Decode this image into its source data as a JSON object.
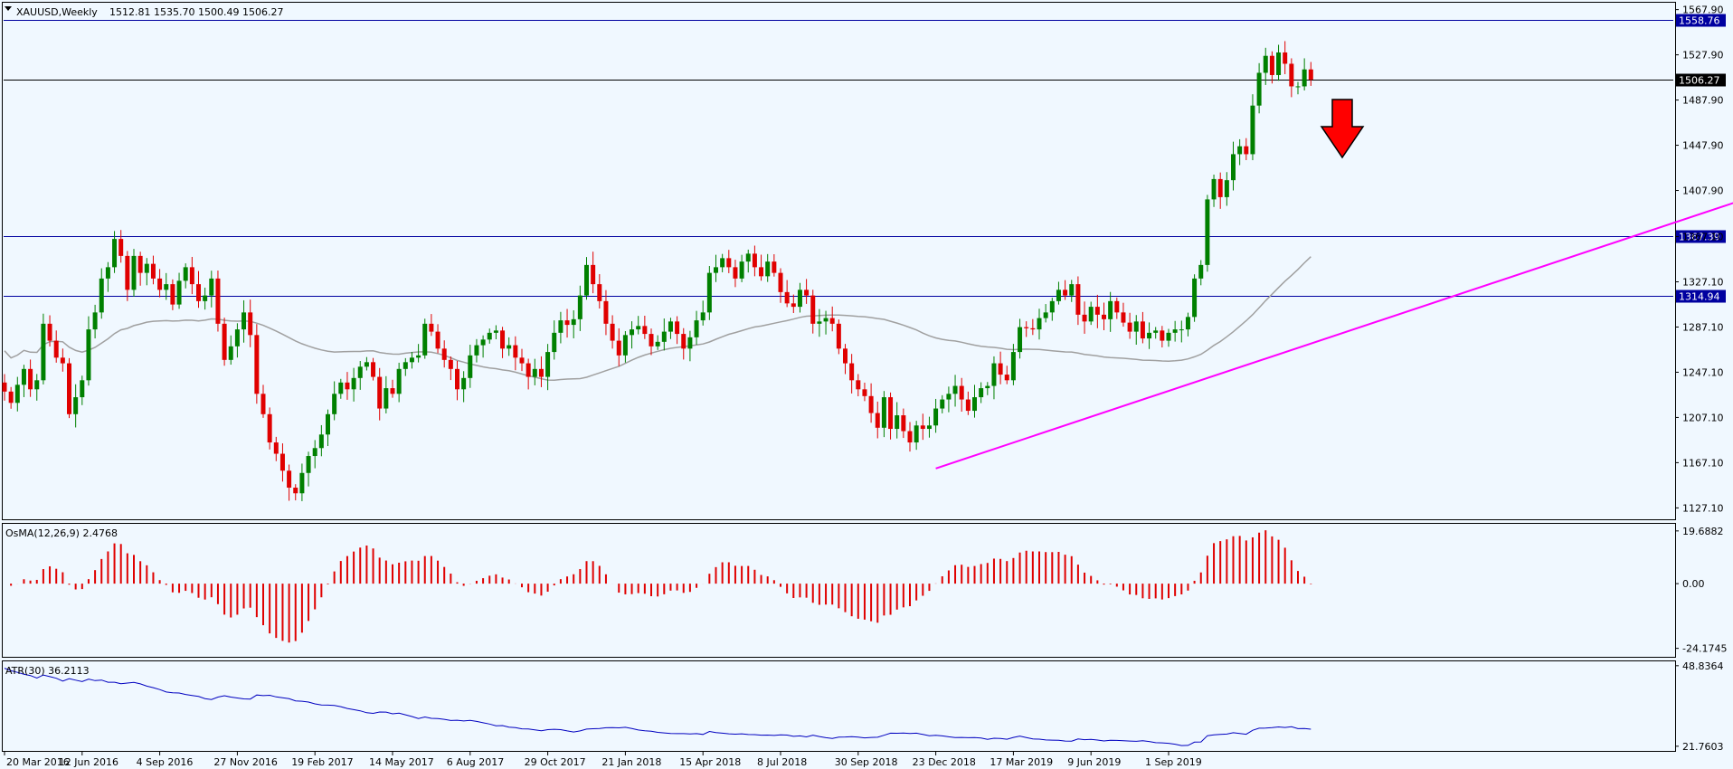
{
  "header": {
    "symbol": "XAUUSD,Weekly",
    "ohlc": "1512.81 1535.70 1500.49 1506.27",
    "menu_icon": "triangle-down-icon"
  },
  "osma_label": "OsMA(12,26,9) 2.4768",
  "atr_label": "ATR(30) 36.2113",
  "colors": {
    "background": "#f0f8ff",
    "bull_candle": "#008000",
    "bear_candle": "#e00000",
    "ma_line": "#a0a0a0",
    "trendline": "#ff00ff",
    "hline_blue": "#0000a0",
    "hline_black": "#000000",
    "osma_bar": "#e00000",
    "atr_line": "#0000c0",
    "arrow": "#ff0000"
  },
  "chart_data": [
    {
      "type": "candlestick",
      "symbol": "XAUUSD",
      "timeframe": "Weekly",
      "y_ticks": [
        "1567.90",
        "1527.90",
        "1487.90",
        "1447.90",
        "1407.90",
        "1367.10",
        "1327.10",
        "1287.10",
        "1247.10",
        "1207.10",
        "1167.10",
        "1127.10"
      ],
      "x_ticks": [
        "20 Mar 2016",
        "12 Jun 2016",
        "4 Sep 2016",
        "27 Nov 2016",
        "19 Feb 2017",
        "14 May 2017",
        "6 Aug 2017",
        "29 Oct 2017",
        "21 Jan 2018",
        "15 Apr 2018",
        "8 Jul 2018",
        "30 Sep 2018",
        "23 Dec 2018",
        "17 Mar 2019",
        "9 Jun 2019",
        "1 Sep 2019"
      ],
      "ylim": [
        1117,
        1574
      ],
      "price_levels": [
        {
          "value": 1558.76,
          "label": "1558.76",
          "style": "blue"
        },
        {
          "value": 1506.27,
          "label": "1506.27",
          "style": "current"
        },
        {
          "value": 1367.39,
          "label": "1367.39",
          "style": "blue"
        },
        {
          "value": 1314.94,
          "label": "1314.94",
          "style": "blue"
        }
      ],
      "closes": [
        1230,
        1220,
        1236,
        1250,
        1232,
        1240,
        1290,
        1275,
        1260,
        1255,
        1210,
        1225,
        1240,
        1285,
        1300,
        1330,
        1340,
        1365,
        1350,
        1320,
        1350,
        1335,
        1343,
        1330,
        1320,
        1325,
        1307,
        1328,
        1340,
        1325,
        1310,
        1315,
        1330,
        1290,
        1258,
        1270,
        1285,
        1300,
        1280,
        1228,
        1210,
        1185,
        1175,
        1160,
        1145,
        1140,
        1158,
        1173,
        1180,
        1192,
        1210,
        1228,
        1238,
        1232,
        1242,
        1252,
        1256,
        1243,
        1215,
        1233,
        1228,
        1250,
        1256,
        1260,
        1262,
        1290,
        1283,
        1268,
        1258,
        1250,
        1232,
        1242,
        1262,
        1271,
        1276,
        1282,
        1284,
        1268,
        1271,
        1260,
        1255,
        1243,
        1250,
        1243,
        1265,
        1282,
        1293,
        1289,
        1294,
        1315,
        1342,
        1325,
        1310,
        1290,
        1275,
        1262,
        1280,
        1285,
        1288,
        1281,
        1270,
        1274,
        1283,
        1292,
        1281,
        1268,
        1278,
        1293,
        1300,
        1335,
        1340,
        1348,
        1340,
        1330,
        1345,
        1352,
        1340,
        1332,
        1345,
        1335,
        1318,
        1308,
        1305,
        1320,
        1315,
        1290,
        1292,
        1295,
        1290,
        1268,
        1255,
        1240,
        1232,
        1226,
        1211,
        1198,
        1225,
        1197,
        1209,
        1195,
        1185,
        1200,
        1197,
        1200,
        1215,
        1223,
        1228,
        1235,
        1223,
        1213,
        1225,
        1233,
        1235,
        1255,
        1245,
        1240,
        1265,
        1287,
        1286,
        1285,
        1295,
        1300,
        1310,
        1320,
        1315,
        1325,
        1298,
        1292,
        1305,
        1298,
        1294,
        1310,
        1300,
        1291,
        1283,
        1292,
        1277,
        1282,
        1284,
        1275,
        1282,
        1285,
        1285,
        1296,
        1330,
        1342,
        1400,
        1418,
        1402,
        1417,
        1440,
        1447,
        1440,
        1483,
        1512,
        1527,
        1510,
        1530,
        1520,
        1500,
        1500,
        1515,
        1506
      ],
      "ma_line": {
        "name": "",
        "description": "long-period moving average"
      },
      "trendline": {
        "from_week": 144,
        "from_price": 1162,
        "to_week": 290,
        "to_price": 1440
      }
    },
    {
      "type": "bar",
      "name": "OsMA(12,26,9)",
      "last_value": 2.4768,
      "y_ticks": [
        "19.6882",
        "0.00",
        "-24.1745"
      ],
      "ylim": [
        -27,
        22
      ]
    },
    {
      "type": "line",
      "name": "ATR(30)",
      "last_value": 36.2113,
      "y_ticks": [
        "48.8364",
        "21.7603"
      ],
      "ylim": [
        20.5,
        50
      ]
    }
  ]
}
